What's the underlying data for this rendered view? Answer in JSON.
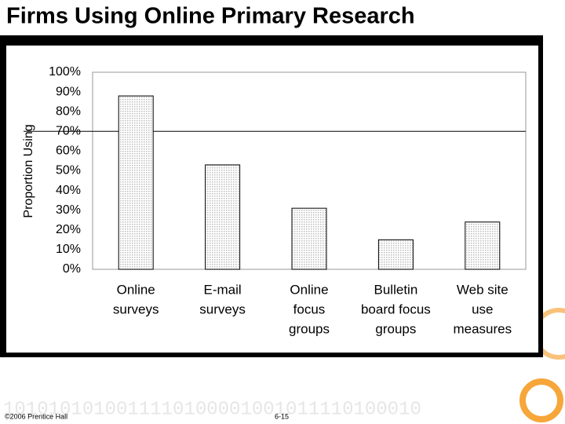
{
  "chart_data": {
    "type": "bar",
    "title": "Firms Using Online Primary Research",
    "y_label": "Proportion Using",
    "categories": [
      [
        "Online",
        "surveys"
      ],
      [
        "E-mail",
        "surveys"
      ],
      [
        "Online",
        "focus",
        "groups"
      ],
      [
        "Bulletin",
        "board focus",
        "groups"
      ],
      [
        "Web site",
        "use",
        "measures"
      ]
    ],
    "values": [
      88,
      53,
      31,
      15,
      24
    ],
    "color": "#d9d9d9",
    "ylim": [
      0,
      100
    ],
    "yticks": [
      {
        "value": 0,
        "label": "0%"
      },
      {
        "value": 10,
        "label": "10%"
      },
      {
        "value": 20,
        "label": "20%"
      },
      {
        "value": 30,
        "label": "30%"
      },
      {
        "value": 40,
        "label": "40%"
      },
      {
        "value": 50,
        "label": "50%"
      },
      {
        "value": 60,
        "label": "60%"
      },
      {
        "value": 70,
        "label": "70%"
      },
      {
        "value": 80,
        "label": "80%"
      },
      {
        "value": 90,
        "label": "90%"
      },
      {
        "value": 100,
        "label": "100%"
      }
    ],
    "hline": 70
  },
  "footer": {
    "copyright": "©2006 Prentice Hall",
    "page": "6-15",
    "binary": "1010101010011110100001001011110100010"
  }
}
